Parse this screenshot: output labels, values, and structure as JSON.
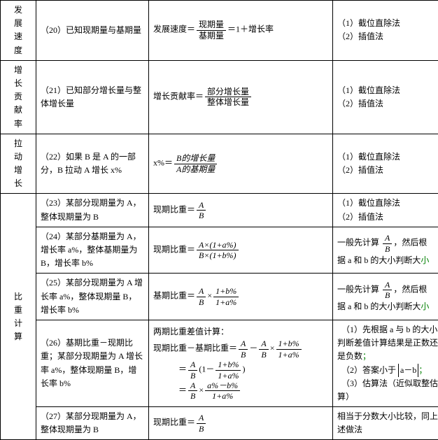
{
  "rows": [
    {
      "cat": "发展速度",
      "desc": "（20）已知现期量与基期量",
      "formula_lead": "发展速度＝",
      "f_num": "现期量",
      "f_den": "基期量",
      "formula_tail": "＝1＋增长率",
      "note": "（1）截位直除法\n（2）插值法"
    },
    {
      "cat": "增长贡献率",
      "desc": "（21）已知部分增长量与整体增长量",
      "formula_lead": "增长贡献率＝",
      "f_num": "部分增长量",
      "f_den": "整体增长量",
      "note": "（1）截位直除法\n（2）插值法"
    },
    {
      "cat": "拉动增长",
      "desc": "（22）如果 B 是 A 的一部分，B 拉动 A 增长 x%",
      "formula_lead": "x%＝",
      "f_num": "B的增长量",
      "f_den": "A的基期量",
      "f_it": true,
      "note": "（1）截位直除法\n（2）插值法"
    },
    {
      "cat": "比重计算",
      "desc": "（23）某部分现期量为 A，整体现期量为 B",
      "formula_lead": "现期比重＝",
      "f_num": "A",
      "f_den": "B",
      "f_it": true,
      "note": "（1）截位直除法\n（2）插值法"
    },
    {
      "desc": "（24）某部分基期量为 A，增长率 a%，整体基期量为 B，增长率 b%",
      "formula_lead": "现期比重＝",
      "f_num": "A×(1+a%)",
      "f_den": "B×(1+b%)",
      "f_it": true,
      "note_html": "一般先计算 <span class='frac it'><span class='fn'>A</span><span class='fd'>B</span></span>，然后根<br>据 a 和 b 的大小判断大<span class='u'>小</span>"
    },
    {
      "desc": "（25）某部分现期量为 A 增长率 a%，整体现期量 B，增长率 b%",
      "formula_html": "基期比重＝<span class='frac it'><span class='fn'>A</span><span class='fd'>B</span></span>×<span class='frac it'><span class='fn'>1+b%</span><span class='fd'>1+a%</span></span>",
      "note_html": "一般先计算 <span class='frac it'><span class='fn'>A</span><span class='fd'>B</span></span>，然后根<br>据 a 和 b 的大小判断大<span class='u'>小</span>"
    },
    {
      "desc": "（26）基期比重－现期比重；某部分现期量为 A 增长率 a%，整体现期量 B，增长率 b%",
      "formula_html": "两期比重差值计算：<br>现期比重－基期比重＝<span class='frac it'><span class='fn'>A</span><span class='fd'>B</span></span>－<span class='frac it'><span class='fn'>A</span><span class='fd'>B</span></span>×<span class='frac it'><span class='fn'>1+b%</span><span class='fd'>1+a%</span></span><br>　　　＝<span class='frac it'><span class='fn'>A</span><span class='fd'>B</span></span>(1－<span class='frac it'><span class='fn'>1+b%</span><span class='fd'>1+a%</span></span>)<br>　　　＝<span class='frac it'><span class='fn'>A</span><span class='fd'>B</span></span>×<span class='frac it'><span class='fn'>a%－b%</span><span class='fd'>1+a%</span></span>",
      "note_html": "　（1）先根据 a 与 b 的大小判断差值计算结果是正数还是负数<span class='u'>；</span><br>　（2）答案小于 <span class='abs'>a－b</span><span class='u'>；</span><br>　（3）估算法（近似取整估算）"
    },
    {
      "desc": "（27）某部分现期量为 A，整体现期量为 B",
      "formula_lead": "现期比重＝",
      "f_num": "A",
      "f_den": "B",
      "f_it": true,
      "note": "相当于分数大小比较，同上述做法"
    }
  ]
}
